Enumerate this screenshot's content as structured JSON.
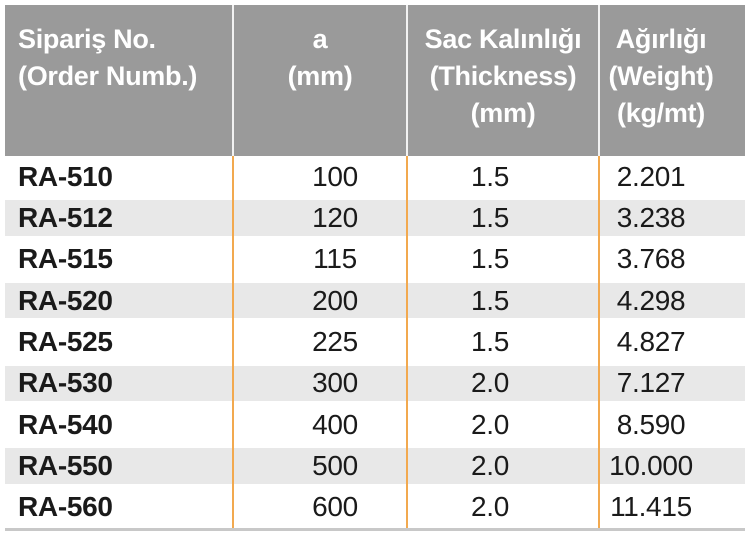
{
  "colors": {
    "header_bg": "#9A9A9A",
    "header_text": "#FFFFFF",
    "header_divider": "#F2F2F2",
    "stripe": "#E8E8E8",
    "divider_orange": "#F2A94F",
    "bottom_border": "#C8C8C8",
    "body_text": "#1A1A1A"
  },
  "table": {
    "columns": [
      {
        "id": "order-number",
        "lines": [
          "Sipariş No.",
          "(Order Numb.)"
        ]
      },
      {
        "id": "a-mm",
        "lines": [
          "a",
          "(mm)"
        ]
      },
      {
        "id": "thickness",
        "lines": [
          "Sac Kalınlığı",
          "(Thickness)",
          "(mm)"
        ]
      },
      {
        "id": "weight",
        "lines": [
          "Ağırlığı",
          "(Weight)",
          "(kg/mt)"
        ]
      }
    ],
    "rows": [
      [
        "RA-510",
        "100",
        "1.5",
        "2.201"
      ],
      [
        "RA-512",
        "120",
        "1.5",
        "3.238"
      ],
      [
        "RA-515",
        "115",
        "1.5",
        "3.768"
      ],
      [
        "RA-520",
        "200",
        "1.5",
        "4.298"
      ],
      [
        "RA-525",
        "225",
        "1.5",
        "4.827"
      ],
      [
        "RA-530",
        "300",
        "2.0",
        "7.127"
      ],
      [
        "RA-540",
        "400",
        "2.0",
        "8.590"
      ],
      [
        "RA-550",
        "500",
        "2.0",
        "10.000"
      ],
      [
        "RA-560",
        "600",
        "2.0",
        "11.415"
      ]
    ]
  }
}
